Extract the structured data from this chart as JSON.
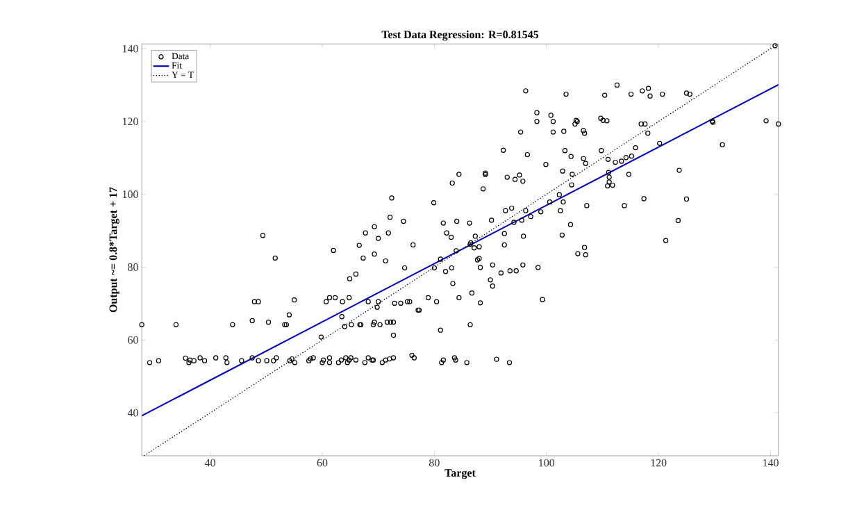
{
  "chart_data": {
    "type": "scatter",
    "title": "Test Data Regression: R=0.81545",
    "xlabel": "Target",
    "ylabel": "Output ~= 0.8*Target + 17",
    "xlim": [
      27.8,
      141.4
    ],
    "ylim": [
      28.2,
      141.3
    ],
    "xticks": [
      40,
      60,
      80,
      100,
      120,
      140
    ],
    "yticks": [
      40,
      60,
      80,
      100,
      120,
      140
    ],
    "legend": "top left",
    "series": [
      {
        "name": "Data",
        "marker": "circle",
        "color": "#000000",
        "x": [
          27.8,
          29.2,
          30.8,
          33.9,
          35.6,
          36.2,
          36.4,
          37.1,
          38.2,
          39.0,
          41.0,
          42.8,
          43.0,
          44.0,
          45.6,
          47.5,
          47.5,
          47.9,
          48.6,
          48.6,
          49.4,
          50.1,
          50.4,
          51.3,
          51.8,
          51.6,
          53.3,
          53.6,
          54.1,
          54.2,
          54.6,
          55.1,
          55.0,
          57.6,
          57.9,
          58.4,
          59.8,
          60.0,
          60.2,
          61.3,
          61.3,
          60.7,
          61.3,
          62.3,
          62.0,
          62.9,
          63.4,
          63.6,
          63.5,
          64.0,
          64.2,
          64.5,
          64.8,
          65.1,
          64.8,
          64.9,
          66.0,
          65.2,
          66.0,
          66.6,
          66.7,
          66.9,
          67.3,
          67.6,
          68.2,
          68.9,
          69.1,
          67.7,
          68.2,
          69.1,
          69.3,
          70.3,
          69.3,
          69.8,
          70.0,
          70.0,
          70.7,
          71.3,
          72.0,
          72.7,
          71.3,
          71.8,
          71.6,
          72.2,
          72.7,
          72.7,
          72.9,
          74.0,
          74.7,
          75.2,
          75.6,
          76.0,
          76.4,
          76.2,
          77.1,
          77.3,
          78.9,
          80.0,
          80.4,
          81.1,
          81.1,
          81.3,
          81.6,
          82.0,
          82.2,
          83.0,
          83.1,
          83.3,
          83.6,
          83.8,
          83.9,
          84.4,
          85.8,
          86.4,
          86.7,
          86.4,
          69.3,
          72.1,
          72.4,
          74.5,
          79.9,
          81.6,
          83.2,
          84.0,
          84.4,
          89.1,
          89.1,
          92.3,
          93.0,
          94.4,
          95.2,
          95.8,
          96.3,
          96.6,
          88.7,
          98.3,
          98.3,
          100.8,
          101.2,
          95.4,
          99.9,
          101.2,
          103.1,
          103.5,
          103.3,
          104.4,
          105.3,
          105.5,
          105.1,
          106.6,
          106.8,
          106.6,
          107.0,
          102.9,
          104.6,
          104.5,
          107.2,
          109.8,
          109.7,
          110.1,
          110.8,
          110.4,
          111.0,
          112.6,
          112.3,
          113.4,
          114.2,
          115.2,
          111.1,
          111.2,
          111.2,
          110.9,
          111.8,
          114.7,
          113.9,
          115.1,
          115.9,
          117.1,
          118.2,
          118.5,
          116.9,
          117.6,
          118.1,
          117.4,
          120.2,
          120.7,
          123.7,
          125.0,
          123.5,
          121.3,
          125.0,
          125.6,
          129.6,
          129.7,
          131.4,
          139.2,
          141.4,
          140.8,
          86.3,
          90.2,
          87.3,
          86.5,
          87.1,
          88.0,
          92.5,
          92.5,
          92.7,
          93.8,
          94.2,
          95.6,
          96.3,
          97.2,
          95.9,
          99.0,
          100.6,
          102.3,
          103.0,
          102.5,
          104.3,
          102.8,
          105.6,
          106.8,
          107.0,
          88.0,
          87.7,
          88.2,
          90.4,
          91.9,
          93.5,
          94.6,
          95.8,
          98.5,
          90.0,
          90.4,
          88.2,
          99.3,
          91.1,
          93.4
        ],
        "values": [
          64.2,
          53.8,
          54.3,
          64.2,
          55.0,
          53.8,
          54.5,
          54.3,
          55.1,
          54.3,
          55.1,
          55.1,
          53.8,
          64.2,
          54.3,
          65.3,
          55.1,
          70.5,
          70.5,
          54.3,
          88.7,
          54.3,
          64.9,
          54.3,
          55.1,
          82.5,
          64.2,
          64.2,
          66.9,
          54.3,
          54.8,
          53.8,
          71.0,
          54.3,
          54.8,
          55.1,
          60.8,
          53.8,
          54.5,
          55.1,
          53.8,
          70.5,
          71.6,
          71.6,
          84.6,
          53.8,
          54.5,
          70.5,
          66.4,
          63.7,
          55.1,
          53.8,
          54.5,
          55.1,
          71.6,
          76.8,
          78.1,
          64.2,
          54.5,
          86.0,
          64.2,
          64.2,
          82.5,
          53.8,
          55.1,
          54.5,
          54.5,
          89.4,
          70.5,
          64.2,
          64.9,
          64.2,
          83.6,
          69.0,
          70.5,
          87.9,
          53.8,
          54.5,
          54.8,
          55.1,
          81.7,
          89.4,
          64.9,
          64.9,
          64.9,
          61.3,
          70.1,
          70.1,
          79.8,
          70.5,
          70.5,
          55.8,
          55.1,
          86.1,
          68.2,
          68.2,
          71.6,
          79.8,
          70.5,
          62.7,
          82.2,
          53.8,
          54.5,
          78.8,
          89.4,
          88.2,
          79.8,
          75.5,
          55.1,
          54.5,
          84.5,
          71.6,
          53.8,
          64.2,
          72.9,
          86.3,
          91.1,
          93.7,
          99.0,
          92.6,
          97.7,
          92.1,
          103.1,
          92.6,
          105.5,
          105.8,
          105.4,
          112.1,
          104.7,
          104.1,
          105.3,
          103.6,
          128.4,
          110.9,
          101.5,
          122.4,
          120.0,
          121.7,
          120.0,
          117.1,
          108.2,
          117.1,
          117.3,
          127.5,
          112.0,
          110.4,
          120.3,
          120.0,
          119.3,
          117.5,
          116.8,
          109.8,
          108.5,
          106.4,
          105.5,
          102.6,
          96.9,
          112.0,
          120.9,
          120.3,
          120.2,
          127.2,
          109.6,
          130.0,
          108.8,
          109.1,
          110.1,
          110.5,
          106.0,
          104.7,
          103.4,
          102.3,
          102.5,
          105.5,
          96.9,
          127.5,
          112.8,
          128.4,
          129.1,
          127.0,
          119.3,
          119.3,
          116.8,
          98.8,
          114.0,
          127.5,
          106.6,
          98.7,
          92.8,
          87.3,
          127.8,
          127.5,
          120.1,
          119.8,
          113.6,
          120.2,
          119.3,
          140.8,
          92.1,
          92.9,
          88.5,
          86.7,
          85.3,
          85.6,
          89.2,
          86.1,
          95.5,
          96.2,
          92.3,
          92.9,
          95.5,
          93.9,
          88.5,
          95.2,
          97.9,
          99.9,
          97.9,
          95.5,
          91.7,
          88.8,
          83.7,
          85.4,
          83.4,
          82.4,
          82.0,
          79.9,
          80.6,
          78.4,
          79.0,
          79.0,
          80.6,
          79.9,
          76.5,
          74.8,
          70.2,
          71.1,
          54.7,
          53.8
        ]
      },
      {
        "name": "Fit",
        "type": "line",
        "marker": "none",
        "line_style": "solid",
        "color": "#0000c0",
        "x": [
          27.8,
          141.4
        ],
        "values": [
          39.2,
          130.1
        ]
      },
      {
        "name": "Y = T",
        "type": "line",
        "marker": "none",
        "line_style": "dotted",
        "color": "#000000",
        "x": [
          28.2,
          141.3
        ],
        "values": [
          28.2,
          141.3
        ]
      }
    ]
  }
}
